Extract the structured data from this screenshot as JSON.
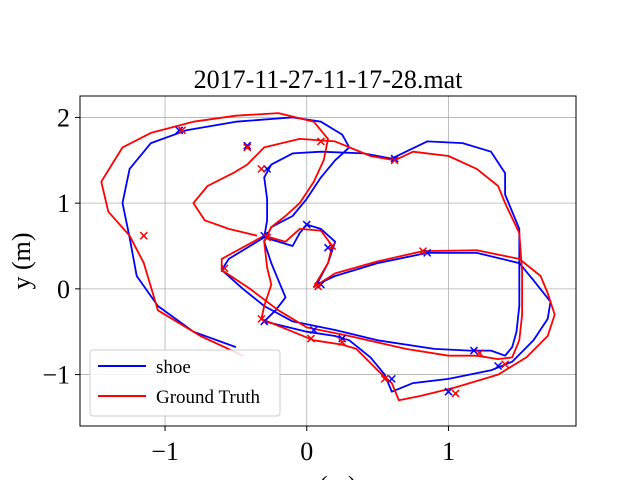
{
  "chart_data": {
    "type": "line",
    "title": "2017-11-27-11-17-28.mat",
    "xlabel": "x (m)",
    "ylabel": "y (m)",
    "xlim": [
      -1.6,
      1.9
    ],
    "ylim": [
      -1.6,
      2.25
    ],
    "xticks": [
      -1,
      0,
      1
    ],
    "xtick_labels": [
      "−1",
      "0",
      "1"
    ],
    "yticks": [
      -1,
      0,
      1,
      2
    ],
    "ytick_labels": [
      "−1",
      "0",
      "1",
      "2"
    ],
    "grid": true,
    "legend_position": "lower-left",
    "series": [
      {
        "name": "shoe",
        "color": "#0000ff",
        "points": [
          [
            -0.5,
            -0.68
          ],
          [
            -0.8,
            -0.5
          ],
          [
            -1.05,
            -0.2
          ],
          [
            -1.2,
            0.15
          ],
          [
            -1.25,
            0.6
          ],
          [
            -1.3,
            1.0
          ],
          [
            -1.25,
            1.4
          ],
          [
            -1.1,
            1.7
          ],
          [
            -0.85,
            1.85
          ],
          [
            -0.5,
            1.95
          ],
          [
            -0.1,
            2.0
          ],
          [
            0.1,
            1.95
          ],
          [
            0.25,
            1.8
          ],
          [
            0.3,
            1.65
          ],
          [
            0.2,
            1.5
          ],
          [
            0.1,
            1.3
          ],
          [
            0.0,
            1.05
          ],
          [
            -0.1,
            0.85
          ],
          [
            -0.25,
            0.72
          ],
          [
            -0.3,
            0.55
          ],
          [
            -0.25,
            0.3
          ],
          [
            -0.2,
            0.1
          ],
          [
            -0.15,
            -0.1
          ],
          [
            -0.22,
            -0.25
          ],
          [
            -0.3,
            -0.38
          ],
          [
            0.0,
            -0.5
          ],
          [
            0.2,
            -0.55
          ],
          [
            0.3,
            -0.6
          ],
          [
            0.45,
            -0.8
          ],
          [
            0.55,
            -1.0
          ],
          [
            0.6,
            -1.2
          ],
          [
            0.75,
            -1.1
          ],
          [
            1.0,
            -1.05
          ],
          [
            1.3,
            -0.95
          ],
          [
            1.45,
            -0.85
          ],
          [
            1.6,
            -0.6
          ],
          [
            1.7,
            -0.35
          ],
          [
            1.72,
            -0.15
          ],
          [
            1.6,
            0.1
          ],
          [
            1.5,
            0.3
          ],
          [
            1.2,
            0.42
          ],
          [
            0.85,
            0.42
          ],
          [
            0.5,
            0.3
          ],
          [
            0.2,
            0.15
          ],
          [
            0.07,
            0.05
          ],
          [
            0.15,
            0.3
          ],
          [
            0.2,
            0.55
          ],
          [
            0.1,
            0.7
          ],
          [
            0.0,
            0.75
          ],
          [
            -0.05,
            0.65
          ],
          [
            -0.1,
            0.5
          ],
          [
            -0.3,
            0.6
          ],
          [
            -0.55,
            0.35
          ],
          [
            -0.6,
            0.22
          ],
          [
            -0.45,
            0.0
          ],
          [
            -0.3,
            -0.2
          ],
          [
            -0.1,
            -0.38
          ],
          [
            0.2,
            -0.48
          ],
          [
            0.5,
            -0.6
          ],
          [
            0.9,
            -0.7
          ],
          [
            1.15,
            -0.72
          ],
          [
            1.3,
            -0.72
          ],
          [
            1.4,
            -0.78
          ],
          [
            1.45,
            -0.68
          ],
          [
            1.48,
            -0.5
          ],
          [
            1.5,
            -0.2
          ],
          [
            1.5,
            0.2
          ],
          [
            1.5,
            0.7
          ],
          [
            1.4,
            1.1
          ],
          [
            1.4,
            1.35
          ],
          [
            1.3,
            1.6
          ],
          [
            1.1,
            1.7
          ],
          [
            0.85,
            1.72
          ],
          [
            0.7,
            1.6
          ],
          [
            0.6,
            1.52
          ],
          [
            0.4,
            1.58
          ],
          [
            0.1,
            1.6
          ],
          [
            -0.1,
            1.58
          ],
          [
            -0.25,
            1.45
          ],
          [
            -0.3,
            1.3
          ],
          [
            -0.28,
            1.05
          ],
          [
            -0.28,
            0.8
          ],
          [
            -0.3,
            0.6
          ]
        ]
      },
      {
        "name": "Ground Truth",
        "color": "#ff0000",
        "points": [
          [
            -0.45,
            -0.78
          ],
          [
            -0.75,
            -0.55
          ],
          [
            -1.05,
            -0.25
          ],
          [
            -1.15,
            0.3
          ],
          [
            -1.25,
            0.62
          ],
          [
            -1.4,
            0.9
          ],
          [
            -1.45,
            1.25
          ],
          [
            -1.3,
            1.65
          ],
          [
            -1.1,
            1.82
          ],
          [
            -0.8,
            1.95
          ],
          [
            -0.5,
            2.02
          ],
          [
            -0.2,
            2.05
          ],
          [
            0.05,
            1.95
          ],
          [
            0.15,
            1.75
          ],
          [
            0.12,
            1.5
          ],
          [
            0.05,
            1.25
          ],
          [
            -0.05,
            1.0
          ],
          [
            -0.15,
            0.85
          ],
          [
            -0.25,
            0.72
          ],
          [
            -0.3,
            0.55
          ],
          [
            -0.28,
            0.25
          ],
          [
            -0.25,
            0.05
          ],
          [
            -0.3,
            -0.2
          ],
          [
            -0.32,
            -0.35
          ],
          [
            0.05,
            -0.6
          ],
          [
            0.25,
            -0.65
          ],
          [
            0.35,
            -0.7
          ],
          [
            0.5,
            -0.95
          ],
          [
            0.6,
            -1.1
          ],
          [
            0.65,
            -1.3
          ],
          [
            0.8,
            -1.25
          ],
          [
            1.05,
            -1.15
          ],
          [
            1.35,
            -1.0
          ],
          [
            1.55,
            -0.8
          ],
          [
            1.7,
            -0.55
          ],
          [
            1.75,
            -0.3
          ],
          [
            1.7,
            -0.05
          ],
          [
            1.65,
            0.15
          ],
          [
            1.5,
            0.35
          ],
          [
            1.2,
            0.45
          ],
          [
            0.82,
            0.44
          ],
          [
            0.5,
            0.32
          ],
          [
            0.2,
            0.18
          ],
          [
            0.05,
            0.02
          ],
          [
            0.15,
            0.3
          ],
          [
            0.18,
            0.5
          ],
          [
            0.1,
            0.68
          ],
          [
            -0.05,
            0.7
          ],
          [
            -0.15,
            0.55
          ],
          [
            -0.3,
            0.62
          ],
          [
            -0.6,
            0.35
          ],
          [
            -0.6,
            0.22
          ],
          [
            -0.4,
            0.0
          ],
          [
            -0.2,
            -0.25
          ],
          [
            0.0,
            -0.45
          ],
          [
            0.3,
            -0.55
          ],
          [
            0.7,
            -0.7
          ],
          [
            1.0,
            -0.78
          ],
          [
            1.2,
            -0.78
          ],
          [
            1.35,
            -0.82
          ],
          [
            1.45,
            -0.8
          ],
          [
            1.5,
            -0.6
          ],
          [
            1.52,
            -0.3
          ],
          [
            1.52,
            0.2
          ],
          [
            1.5,
            0.65
          ],
          [
            1.4,
            1.0
          ],
          [
            1.35,
            1.2
          ],
          [
            1.2,
            1.4
          ],
          [
            1.0,
            1.55
          ],
          [
            0.75,
            1.6
          ],
          [
            0.62,
            1.5
          ],
          [
            0.45,
            1.55
          ],
          [
            0.2,
            1.72
          ],
          [
            -0.05,
            1.75
          ],
          [
            -0.3,
            1.65
          ],
          [
            -0.42,
            1.45
          ],
          [
            -0.52,
            1.35
          ],
          [
            -0.7,
            1.2
          ],
          [
            -0.8,
            1.0
          ],
          [
            -0.72,
            0.8
          ],
          [
            -0.55,
            0.7
          ],
          [
            -0.35,
            0.62
          ]
        ]
      }
    ],
    "markers": [
      {
        "series": "shoe",
        "points": [
          [
            -0.9,
            1.85
          ],
          [
            -0.42,
            1.67
          ],
          [
            -0.28,
            1.4
          ],
          [
            -0.3,
            0.62
          ],
          [
            -0.3,
            -0.38
          ],
          [
            0.05,
            -0.48
          ],
          [
            0.25,
            -0.58
          ],
          [
            0.6,
            -1.05
          ],
          [
            1.0,
            -1.2
          ],
          [
            1.18,
            -0.72
          ],
          [
            1.35,
            -0.9
          ],
          [
            0.85,
            0.42
          ],
          [
            0.1,
            0.05
          ],
          [
            0.15,
            0.48
          ],
          [
            0.0,
            0.75
          ],
          [
            0.62,
            1.52
          ]
        ]
      },
      {
        "series": "Ground Truth",
        "points": [
          [
            -0.88,
            1.85
          ],
          [
            -0.42,
            1.65
          ],
          [
            -0.32,
            1.4
          ],
          [
            -0.28,
            0.6
          ],
          [
            -0.32,
            -0.35
          ],
          [
            0.03,
            -0.58
          ],
          [
            0.25,
            -0.62
          ],
          [
            0.55,
            -1.05
          ],
          [
            1.05,
            -1.22
          ],
          [
            1.22,
            -0.75
          ],
          [
            1.4,
            -0.88
          ],
          [
            0.82,
            0.44
          ],
          [
            0.08,
            0.03
          ],
          [
            0.18,
            0.5
          ],
          [
            0.1,
            1.72
          ],
          [
            0.62,
            1.5
          ],
          [
            -1.15,
            0.62
          ],
          [
            -0.58,
            0.24
          ]
        ]
      }
    ]
  }
}
